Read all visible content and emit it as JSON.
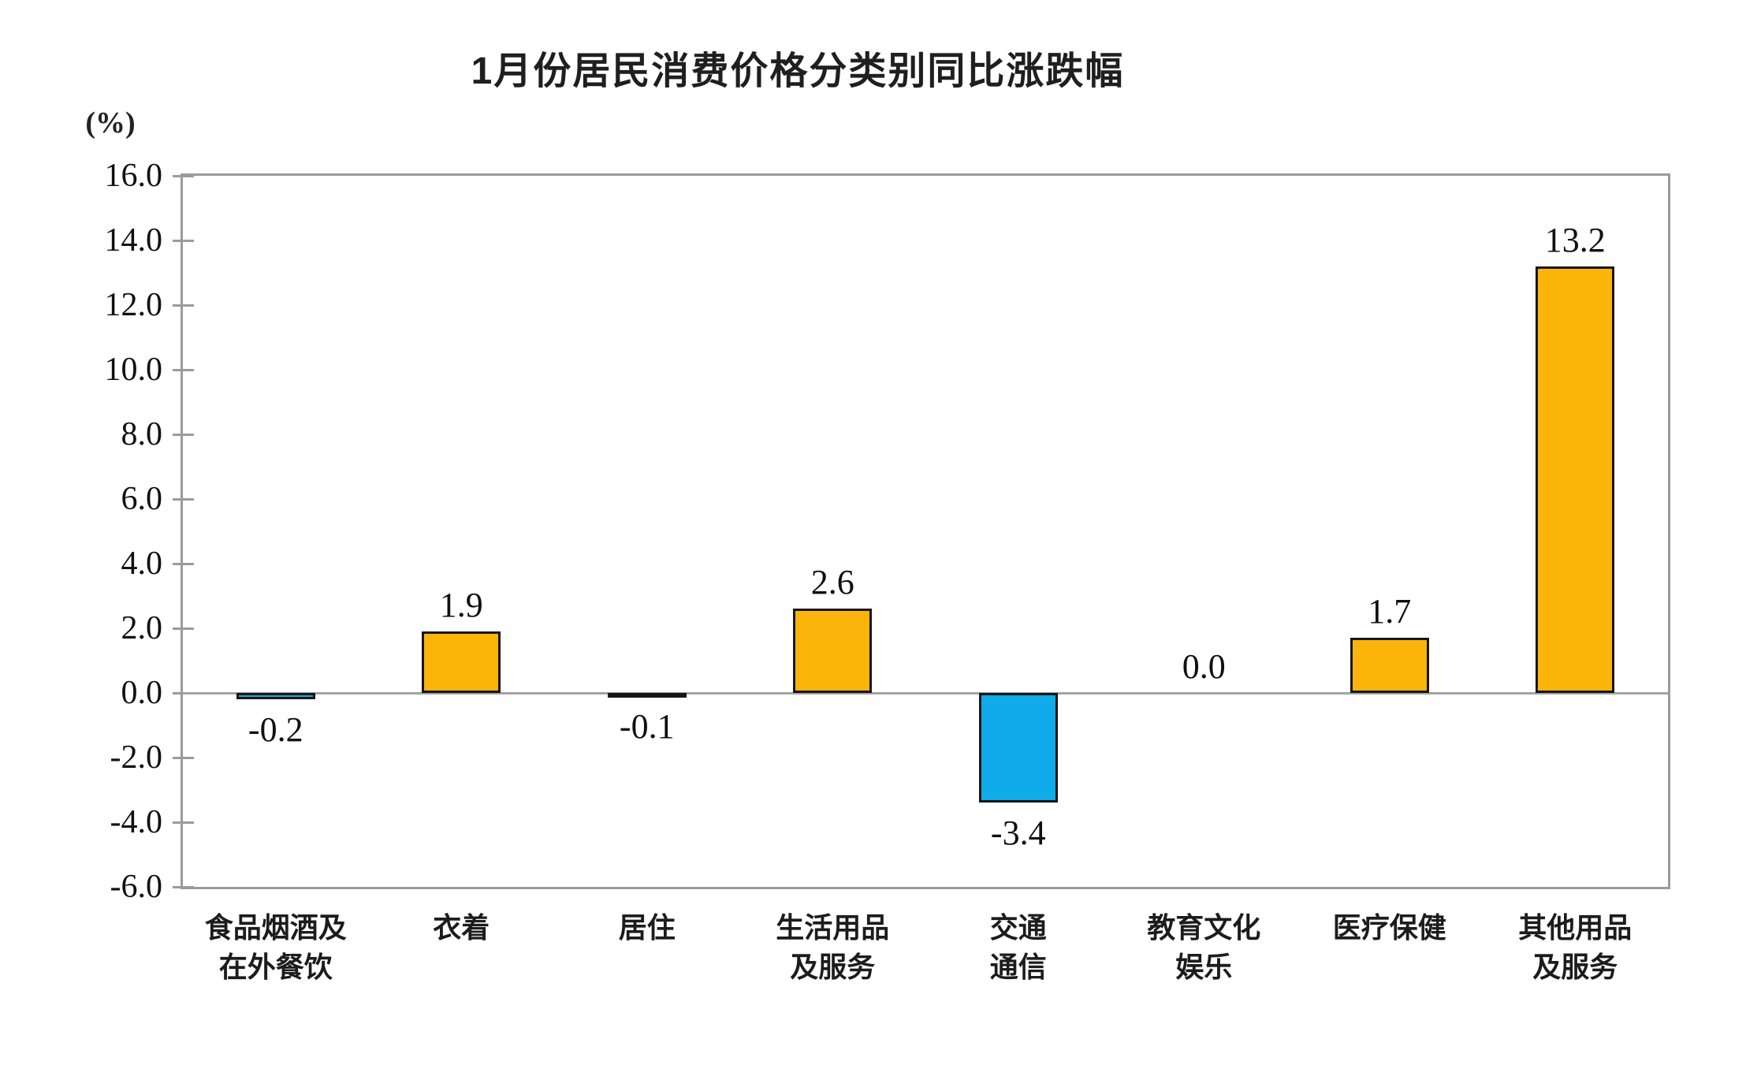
{
  "chart_data": {
    "type": "bar",
    "title": "1月份居民消费价格分类别同比涨跌幅",
    "unit_label": "(%)",
    "categories": [
      "食品烟酒及\n在外餐饮",
      "衣着",
      "居住",
      "生活用品\n及服务",
      "交通\n通信",
      "教育文化\n娱乐",
      "医疗保健",
      "其他用品\n及服务"
    ],
    "values": [
      -0.2,
      1.9,
      -0.1,
      2.6,
      -3.4,
      0.0,
      1.7,
      13.2
    ],
    "value_labels": [
      "-0.2",
      "1.9",
      "-0.1",
      "2.6",
      "-3.4",
      "0.0",
      "1.7",
      "13.2"
    ],
    "ylim": [
      -6.0,
      16.0
    ],
    "ytick_step": 2.0,
    "ytick_labels": [
      "16.0",
      "14.0",
      "12.0",
      "10.0",
      "8.0",
      "6.0",
      "4.0",
      "2.0",
      "0.0",
      "-2.0",
      "-4.0",
      "-6.0"
    ],
    "grid": false,
    "legend": null,
    "colors": {
      "positive_bar": "#FBB40A",
      "negative_bar": "#0FACE9",
      "bar_border": "#161616",
      "axis": "#9B9B9B",
      "text": "#1F1F1F"
    }
  }
}
